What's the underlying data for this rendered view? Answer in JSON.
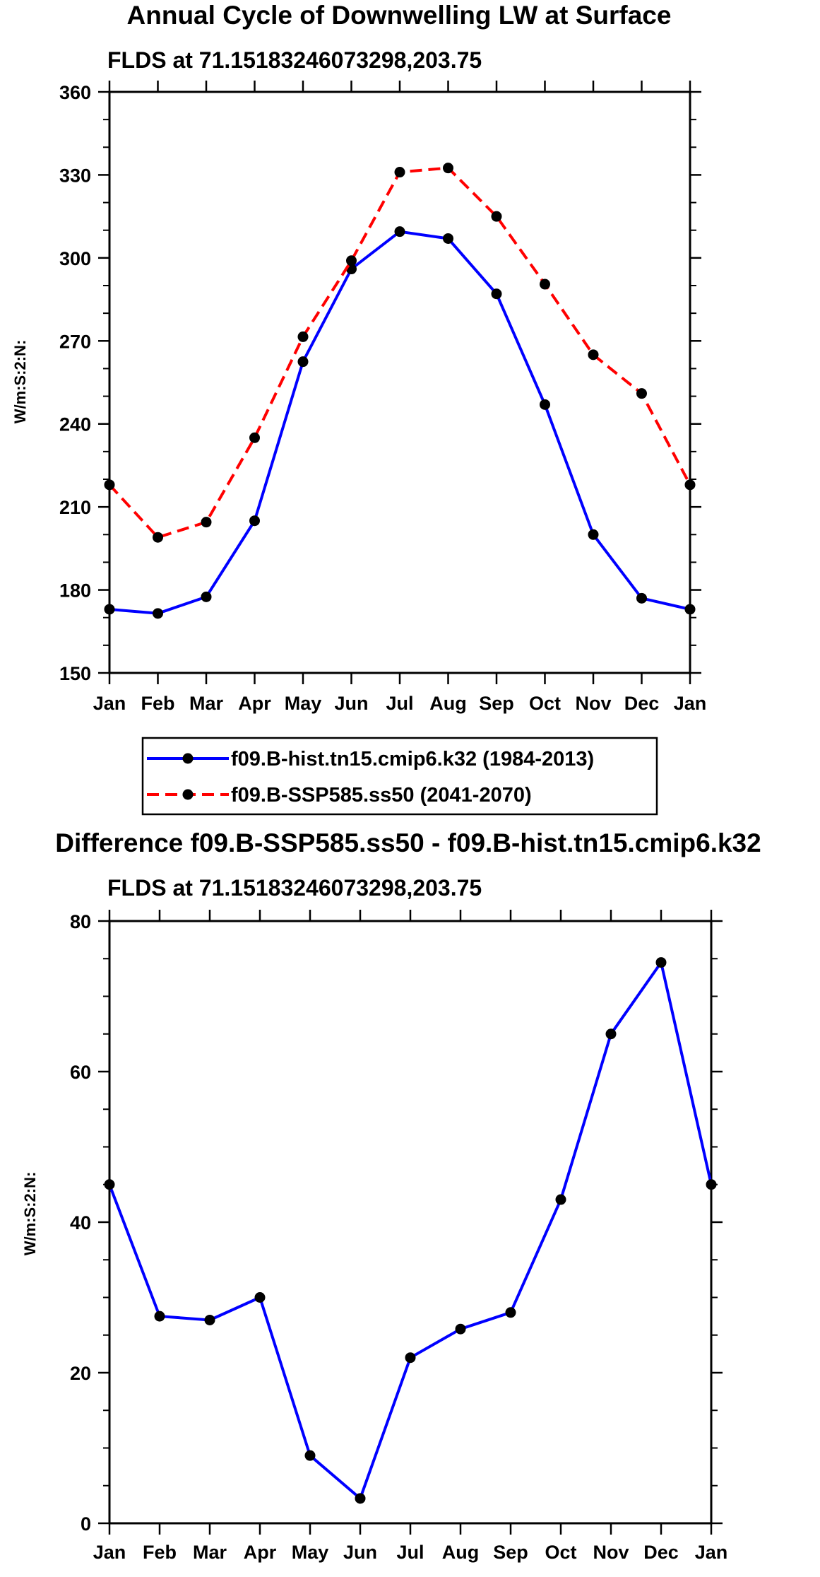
{
  "chart_data": [
    {
      "type": "line",
      "title": "Annual Cycle of Downwelling LW at Surface",
      "subtitle": "FLDS at 71.15183246073298,203.75",
      "xlabel": "",
      "ylabel": "W/m:S:2:N:",
      "categories": [
        "Jan",
        "Feb",
        "Mar",
        "Apr",
        "May",
        "Jun",
        "Jul",
        "Aug",
        "Sep",
        "Oct",
        "Nov",
        "Dec",
        "Jan"
      ],
      "ylim": [
        150,
        360
      ],
      "yticks": [
        150,
        180,
        210,
        240,
        270,
        300,
        330,
        360
      ],
      "series": [
        {
          "name": "f09.B-hist.tn15.cmip6.k32 (1984-2013)",
          "color": "#0000ff",
          "dash": "solid",
          "values": [
            173,
            171.5,
            177.5,
            205,
            262.5,
            296,
            309.5,
            307,
            287,
            247,
            200,
            177,
            173
          ]
        },
        {
          "name": "f09.B-SSP585.ss50 (2041-2070)",
          "color": "#ff0000",
          "dash": "dashed",
          "values": [
            218,
            199,
            204.5,
            235,
            271.5,
            299,
            331,
            332.5,
            315,
            290.5,
            265,
            251,
            218
          ]
        }
      ],
      "legend_position": "bottom"
    },
    {
      "type": "line",
      "title": "Difference f09.B-SSP585.ss50 - f09.B-hist.tn15.cmip6.k32",
      "subtitle": "FLDS at 71.15183246073298,203.75",
      "xlabel": "",
      "ylabel": "W/m:S:2:N:",
      "categories": [
        "Jan",
        "Feb",
        "Mar",
        "Apr",
        "May",
        "Jun",
        "Jul",
        "Aug",
        "Sep",
        "Oct",
        "Nov",
        "Dec",
        "Jan"
      ],
      "ylim": [
        0,
        80
      ],
      "yticks": [
        0,
        20,
        40,
        60,
        80
      ],
      "series": [
        {
          "name": "Difference",
          "color": "#0000ff",
          "dash": "solid",
          "values": [
            45,
            27.5,
            27,
            30,
            9,
            3.3,
            22,
            25.8,
            28,
            43,
            65,
            74.5,
            45
          ]
        }
      ]
    }
  ]
}
